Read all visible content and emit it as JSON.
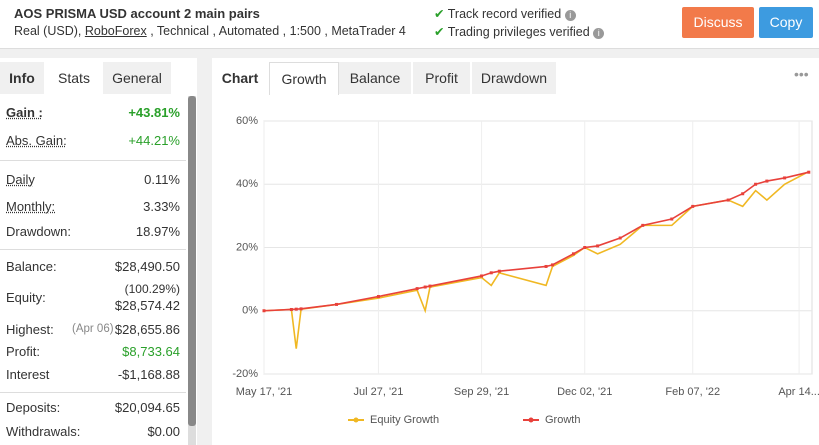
{
  "header": {
    "title": "AOS PRISMA USD account 2 main pairs",
    "details_start": "Real (USD),",
    "broker": "RoboForex",
    "details_end": ", Technical , Automated , 1:500 , MetaTrader 4",
    "verified": [
      "Track record verified",
      "Trading privileges verified"
    ],
    "buttons": [
      "Discuss",
      "Copy"
    ]
  },
  "left_tabs": [
    "Info",
    "Stats",
    "General"
  ],
  "stats": {
    "gain": {
      "label": "Gain :",
      "value": "+43.81%"
    },
    "abs_gain": {
      "label": "Abs. Gain:",
      "value": "+44.21%"
    },
    "daily": {
      "label": "Daily",
      "value": "0.11%"
    },
    "monthly": {
      "label": "Monthly:",
      "value": "3.33%"
    },
    "drawdown": {
      "label": "Drawdown:",
      "value": "18.97%"
    },
    "balance": {
      "label": "Balance:",
      "value": "$28,490.50"
    },
    "equity": {
      "label": "Equity:",
      "note": "(100.29%)",
      "value": "$28,574.42"
    },
    "highest": {
      "label": "Highest:",
      "note": "(Apr 06)",
      "value": "$28,655.86"
    },
    "profit": {
      "label": "Profit:",
      "value": "$8,733.64"
    },
    "interest": {
      "label": "Interest",
      "value": "-$1,168.88"
    },
    "deposits": {
      "label": "Deposits:",
      "value": "$20,094.65"
    },
    "withdrawals": {
      "label": "Withdrawals:",
      "value": "$0.00"
    }
  },
  "chart_tabs": {
    "label": "Chart",
    "tabs": [
      "Growth",
      "Balance",
      "Profit",
      "Drawdown"
    ]
  },
  "chart_data": {
    "type": "line",
    "x": [
      "2021-05-17",
      "2021-06-03",
      "2021-06-06",
      "2021-06-09",
      "2021-07-01",
      "2021-07-27",
      "2021-08-20",
      "2021-08-25",
      "2021-08-28",
      "2021-09-29",
      "2021-10-05",
      "2021-10-10",
      "2021-11-08",
      "2021-11-12",
      "2021-11-25",
      "2021-12-02",
      "2021-12-10",
      "2021-12-24",
      "2022-01-07",
      "2022-01-25",
      "2022-02-07",
      "2022-03-01",
      "2022-03-10",
      "2022-03-18",
      "2022-03-25",
      "2022-04-05",
      "2022-04-20"
    ],
    "series": [
      {
        "name": "Equity Growth",
        "color": "#f0b823",
        "values": [
          0,
          0.4,
          -12,
          0.5,
          2,
          4,
          6.5,
          0,
          7.5,
          10.5,
          8,
          12,
          8,
          14,
          17.5,
          20,
          18,
          21,
          27,
          27,
          33,
          35,
          33,
          38,
          35,
          40,
          44
        ]
      },
      {
        "name": "Growth",
        "color": "#e8413b",
        "values": [
          0,
          0.4,
          0.5,
          0.6,
          2,
          4.5,
          7,
          7.5,
          7.8,
          11,
          12,
          12.5,
          14,
          14.5,
          18,
          20,
          20.5,
          23,
          27,
          29,
          33,
          35,
          37,
          40,
          41,
          42,
          43.81
        ]
      }
    ],
    "xlim": [
      "2021-05-17",
      "2022-04-22"
    ],
    "xticks": [
      {
        "value": "2021-05-17",
        "label": "May 17, '21"
      },
      {
        "value": "2021-07-27",
        "label": "Jul 27, '21"
      },
      {
        "value": "2021-09-29",
        "label": "Sep 29, '21"
      },
      {
        "value": "2021-12-02",
        "label": "Dec 02, '21"
      },
      {
        "value": "2022-02-07",
        "label": "Feb 07, '22"
      },
      {
        "value": "2022-04-14",
        "label": "Apr 14..."
      }
    ],
    "ylim": [
      -20,
      60
    ],
    "yticks": [
      {
        "value": -20,
        "label": "-20%"
      },
      {
        "value": 0,
        "label": "0%"
      },
      {
        "value": 20,
        "label": "20%"
      },
      {
        "value": 40,
        "label": "40%"
      },
      {
        "value": 60,
        "label": "60%"
      }
    ],
    "grid": true
  }
}
